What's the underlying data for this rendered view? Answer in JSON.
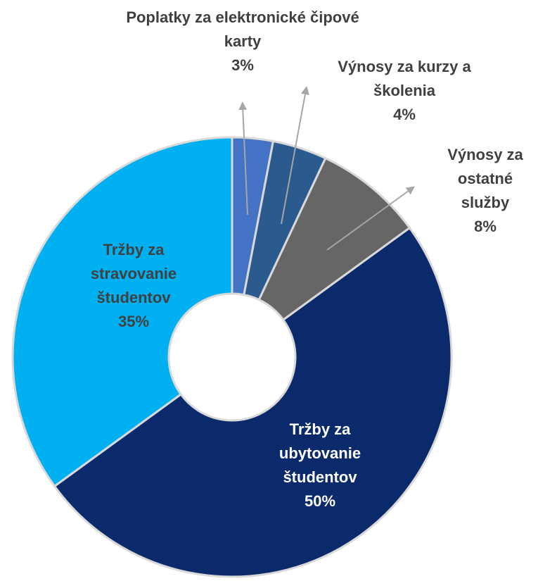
{
  "chart_data": {
    "type": "donut",
    "categories": [
      "Poplatky za elektronické čipové karty",
      "Výnosy za kurzy a školenia",
      "Výnosy za ostatné služby",
      "Tržby za ubytovanie študentov",
      "Tržby za stravovanie študentov"
    ],
    "values": [
      3,
      4,
      8,
      50,
      35
    ],
    "value_labels": [
      "3%",
      "4%",
      "8%",
      "50%",
      "35%"
    ],
    "colors": [
      "#4472c4",
      "#2b5b8e",
      "#666666",
      "#0a2a6b",
      "#00b0f0"
    ]
  }
}
